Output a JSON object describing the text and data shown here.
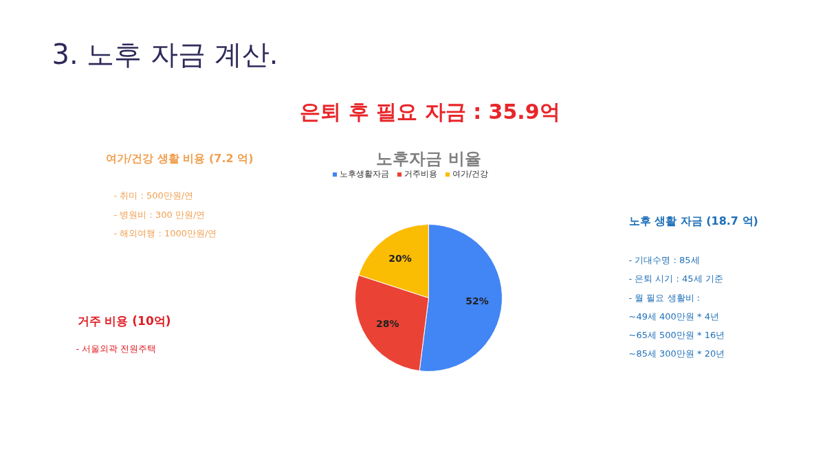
{
  "chart_data": {
    "type": "pie",
    "title": "3. 노후 자금 계산.",
    "subtitle": "은퇴 후 필요 자금 : 35.9억",
    "categories": [
      "노후생활자금",
      "거주비용",
      "여가/건강"
    ],
    "values": [
      52,
      28,
      20
    ],
    "colors": [
      "#4285f4",
      "#ea4335",
      "#fbbc04"
    ],
    "value_labels": [
      "52%",
      "28%",
      "20%"
    ],
    "legend": "top",
    "annotations": [
      "노후자금 비율",
      "여가/건강 생활 비용 (7.2 억)",
      "- 취미 : 500만원/연",
      "- 병원비 : 300 만원/연",
      "- 해외여행 : 1000만원/연",
      "거주 비용 (10억)",
      "-  서울외곽 전원주택",
      "노후 생활 자금 (18.7 억)",
      "- 기대수명 : 85세",
      "- 은퇴 시기 : 45세 기준",
      "- 월 필요 생활비 :",
      "~49세 400만원 * 4년",
      "~65세 500만원 * 16년",
      "~85세 300만원 * 20년"
    ]
  }
}
